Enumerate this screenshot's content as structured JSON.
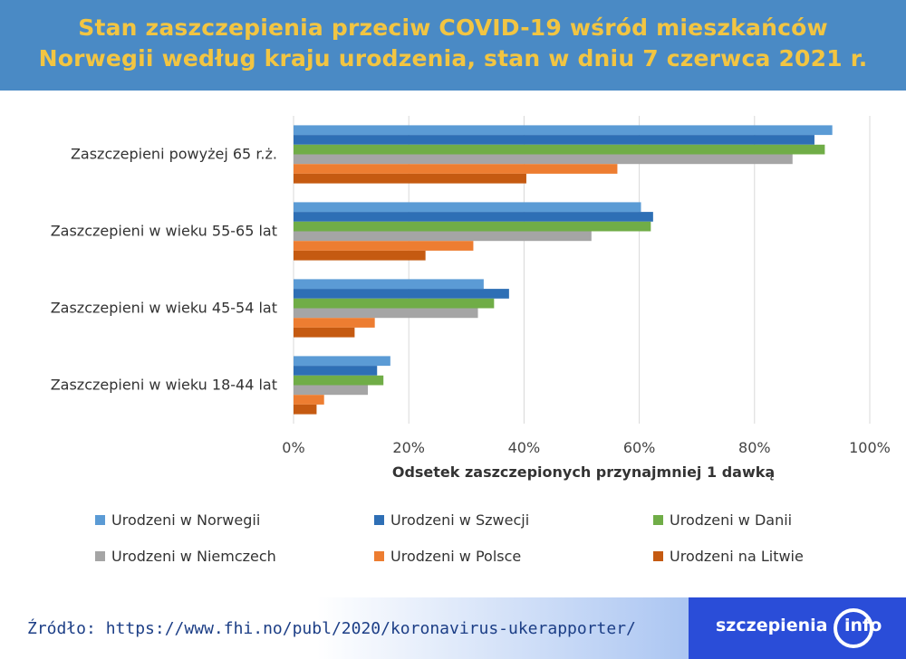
{
  "title_line1": "Stan zaszczepienia przeciw COVID-19 wśród mieszkańców",
  "title_line2": "Norwegii według kraju urodzenia, stan w dniu 7 czerwca 2021 r.",
  "colors": {
    "header_bg": "#4a8ac5",
    "title": "#f2c542",
    "grid": "#d9d9d9",
    "logo_bg": "#2a4dd8"
  },
  "chart_data": {
    "type": "bar",
    "orientation": "horizontal",
    "categories": [
      "Zaszczepieni powyżej 65 r.ż.",
      "Zaszczepieni w wieku 55-65 lat",
      "Zaszczepieni w wieku 45-54 lat",
      "Zaszczepieni w wieku 18-44 lat"
    ],
    "series": [
      {
        "name": "Urodzeni w Norwegii",
        "color": "#5b9bd5",
        "values": [
          93.5,
          60.3,
          33.0,
          16.8
        ]
      },
      {
        "name": "Urodzeni w Szwecji",
        "color": "#2e6fb5",
        "values": [
          90.4,
          62.4,
          37.4,
          14.5
        ]
      },
      {
        "name": "Urodzeni w Danii",
        "color": "#70ad47",
        "values": [
          92.2,
          62.0,
          34.8,
          15.6
        ]
      },
      {
        "name": "Urodzeni w Niemczech",
        "color": "#a5a5a5",
        "values": [
          86.6,
          51.7,
          32.0,
          12.9
        ]
      },
      {
        "name": "Urodzeni w Polsce",
        "color": "#ed7d31",
        "values": [
          56.2,
          31.2,
          14.1,
          5.3
        ]
      },
      {
        "name": "Urodzeni na Litwie",
        "color": "#c55a11",
        "values": [
          40.4,
          22.9,
          10.6,
          4.0
        ]
      }
    ],
    "xlabel": "Odsetek zaszczepionych przynajmniej 1 dawką",
    "xlim": [
      0,
      100
    ],
    "xticks": [
      "0%",
      "20%",
      "40%",
      "60%",
      "80%",
      "100%"
    ],
    "grid": true,
    "legend_position": "bottom"
  },
  "source": "Źródło: https://www.fhi.no/publ/2020/koronavirus-ukerapporter/",
  "logo": {
    "text": "szczepienia",
    "suffix": "info"
  }
}
